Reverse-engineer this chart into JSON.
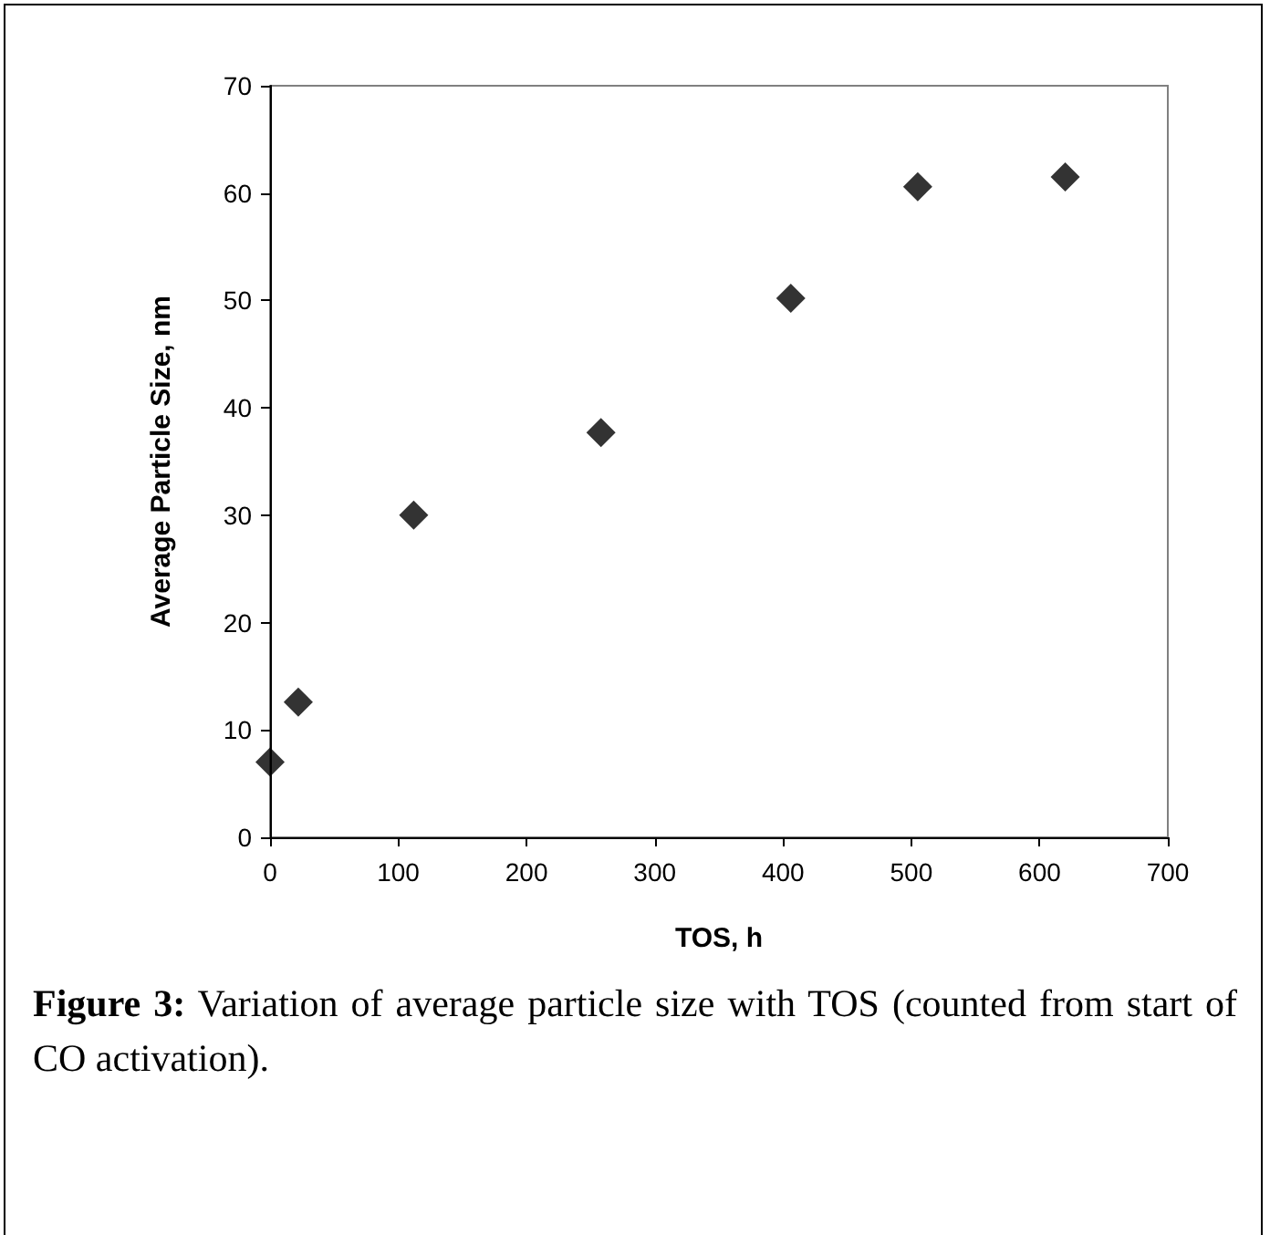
{
  "chart_data": {
    "type": "scatter",
    "xlabel": "TOS, h",
    "ylabel": "Average Particle Size, nm",
    "x": [
      0,
      22,
      112,
      258,
      406,
      505,
      620
    ],
    "values": [
      7.0,
      12.6,
      30.0,
      37.7,
      50.2,
      60.6,
      61.5
    ],
    "color": "#000000",
    "marker": "diamond",
    "xlim": [
      0,
      700
    ],
    "xticks": [
      0,
      100,
      200,
      300,
      400,
      500,
      600,
      700
    ],
    "ylim": [
      0,
      70
    ],
    "yticks": [
      0,
      10,
      20,
      30,
      40,
      50,
      60,
      70
    ],
    "grid": false,
    "annotations": [
      "Figure 3: Variation of average particle size with TOS (counted from start of CO activation)."
    ]
  }
}
